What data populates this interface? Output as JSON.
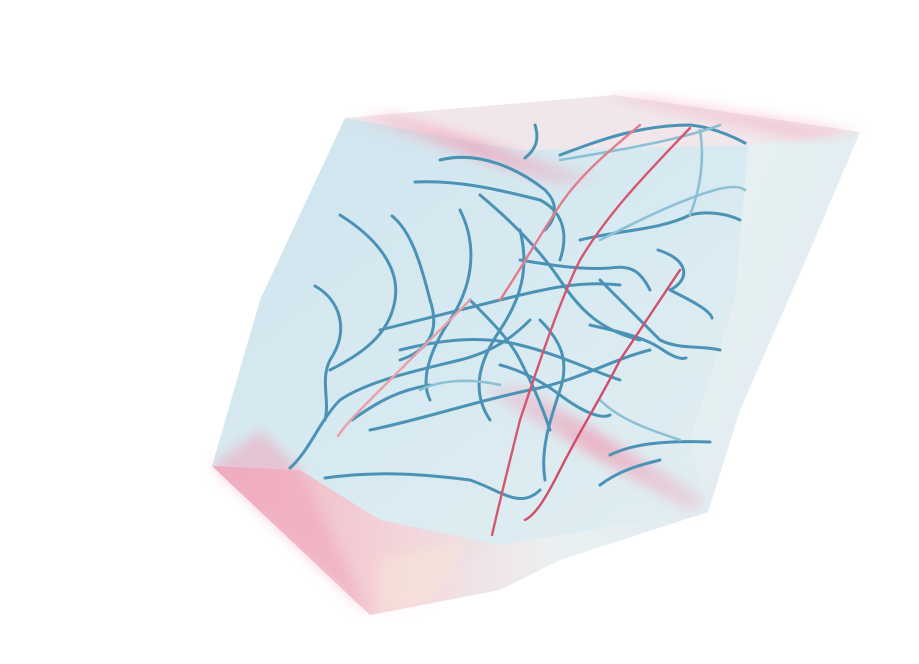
{
  "scene": {
    "kind": "3d-streamtube-rendering",
    "background_color": "#ffffff",
    "colors": {
      "volume_base": "#d7e9f0",
      "volume_light": "#eef5f7",
      "volume_pink": "#f2b2c3",
      "volume_cream": "#f7e9dc",
      "tube_blue": "#4a93b6",
      "tube_light_blue": "#8cc0d4",
      "tube_red": "#d4566f",
      "tube_pink": "#eaa0a8"
    }
  }
}
